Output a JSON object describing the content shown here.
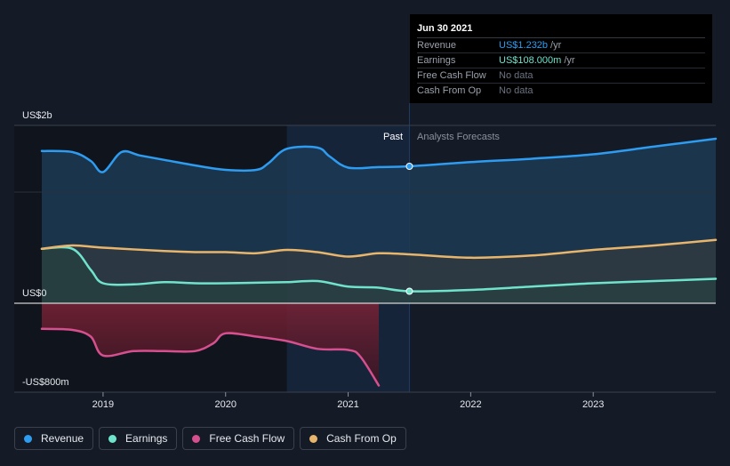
{
  "tooltip": {
    "date": "Jun 30 2021",
    "rows": [
      {
        "label": "Revenue",
        "value": "US$1.232b",
        "unit": "/yr"
      },
      {
        "label": "Earnings",
        "value": "US$108.000m",
        "unit": "/yr"
      },
      {
        "label": "Free Cash Flow",
        "value": "No data",
        "unit": ""
      },
      {
        "label": "Cash From Op",
        "value": "No data",
        "unit": ""
      }
    ]
  },
  "zones": {
    "past": "Past",
    "forecast": "Analysts Forecasts"
  },
  "legend": [
    {
      "label": "Revenue",
      "color": "#2e9cf0"
    },
    {
      "label": "Earnings",
      "color": "#6fe3cc"
    },
    {
      "label": "Free Cash Flow",
      "color": "#d64f8f"
    },
    {
      "label": "Cash From Op",
      "color": "#e8b56c"
    }
  ],
  "chart_data": {
    "type": "line",
    "y_tick_labels": [
      "US$2b",
      "US$0",
      "-US$800m"
    ],
    "x_tick_labels": [
      "2019",
      "2020",
      "2021",
      "2022",
      "2023"
    ],
    "ylim": [
      -800,
      1600
    ],
    "y_unit": "US$m",
    "xlim": [
      2018.5,
      2024.0
    ],
    "x_ticks": [
      2019,
      2020,
      2021,
      2022,
      2023
    ],
    "past_end": 2021.5,
    "highlight_start": 2020.5,
    "series": [
      {
        "name": "Revenue",
        "color": "#2e9cf0",
        "x": [
          2018.5,
          2018.75,
          2018.9,
          2019.0,
          2019.15,
          2019.3,
          2019.5,
          2019.75,
          2020.0,
          2020.25,
          2020.35,
          2020.5,
          2020.75,
          2020.85,
          2021.0,
          2021.25,
          2021.5,
          2022.0,
          2022.5,
          2023.0,
          2023.5,
          2024.0
        ],
        "y": [
          1370,
          1360,
          1280,
          1180,
          1360,
          1330,
          1290,
          1240,
          1200,
          1200,
          1260,
          1390,
          1400,
          1320,
          1220,
          1225,
          1232,
          1270,
          1300,
          1340,
          1410,
          1480
        ]
      },
      {
        "name": "Earnings",
        "color": "#6fe3cc",
        "x": [
          2018.5,
          2018.75,
          2018.9,
          2019.0,
          2019.25,
          2019.5,
          2019.75,
          2020.0,
          2020.25,
          2020.5,
          2020.75,
          2021.0,
          2021.25,
          2021.5,
          2022.0,
          2022.5,
          2023.0,
          2023.5,
          2024.0
        ],
        "y": [
          490,
          490,
          300,
          180,
          170,
          190,
          180,
          180,
          185,
          190,
          200,
          150,
          140,
          108,
          120,
          150,
          180,
          200,
          220
        ]
      },
      {
        "name": "Free Cash Flow",
        "color": "#d64f8f",
        "x": [
          2018.5,
          2018.75,
          2018.9,
          2019.0,
          2019.25,
          2019.5,
          2019.75,
          2019.9,
          2020.0,
          2020.25,
          2020.5,
          2020.75,
          2021.0,
          2021.1,
          2021.25
        ],
        "y": [
          -230,
          -240,
          -300,
          -470,
          -430,
          -430,
          -430,
          -360,
          -270,
          -300,
          -340,
          -410,
          -420,
          -480,
          -740
        ]
      },
      {
        "name": "Cash From Op",
        "color": "#e8b56c",
        "x": [
          2018.5,
          2018.75,
          2019.0,
          2019.5,
          2019.75,
          2020.0,
          2020.25,
          2020.5,
          2020.75,
          2021.0,
          2021.25,
          2021.5,
          2022.0,
          2022.5,
          2023.0,
          2023.5,
          2024.0
        ],
        "y": [
          490,
          520,
          500,
          470,
          460,
          460,
          450,
          480,
          460,
          420,
          450,
          440,
          410,
          430,
          480,
          520,
          570
        ]
      }
    ],
    "markers": [
      {
        "series": "Revenue",
        "x": 2021.5,
        "y": 1232
      },
      {
        "series": "Earnings",
        "x": 2021.5,
        "y": 108
      }
    ]
  }
}
